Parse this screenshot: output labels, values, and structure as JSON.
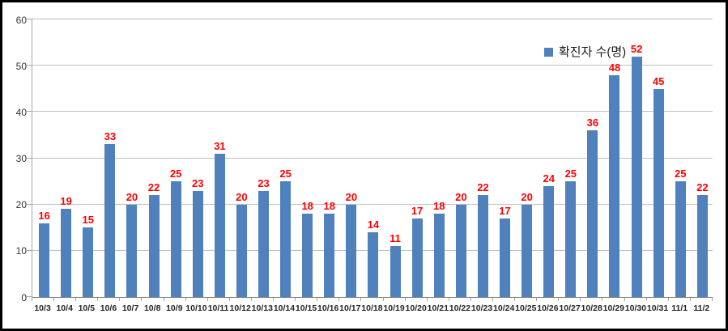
{
  "chart_data": {
    "type": "bar",
    "title": "",
    "legend": "확진자 수(명)",
    "legend_position": "top-right",
    "categories": [
      "10/3",
      "10/4",
      "10/5",
      "10/6",
      "10/7",
      "10/8",
      "10/9",
      "10/10",
      "10/11",
      "10/12",
      "10/13",
      "10/14",
      "10/15",
      "10/16",
      "10/17",
      "10/18",
      "10/19",
      "10/20",
      "10/21",
      "10/22",
      "10/23",
      "10/24",
      "10/25",
      "10/26",
      "10/27",
      "10/28",
      "10/29",
      "10/30",
      "10/31",
      "11/1",
      "11/2"
    ],
    "values": [
      16,
      19,
      15,
      33,
      20,
      22,
      25,
      23,
      31,
      20,
      23,
      25,
      18,
      18,
      20,
      14,
      11,
      17,
      18,
      20,
      22,
      17,
      20,
      24,
      25,
      36,
      48,
      52,
      45,
      25,
      22
    ],
    "xlabel": "",
    "ylabel": "",
    "ylim": [
      0,
      60
    ],
    "yticks": [
      0,
      10,
      20,
      30,
      40,
      50,
      60
    ],
    "grid": true,
    "bar_color": "#4f81bd",
    "data_label_color": "#ff0000",
    "gridline_color": "#c0c0c0"
  }
}
